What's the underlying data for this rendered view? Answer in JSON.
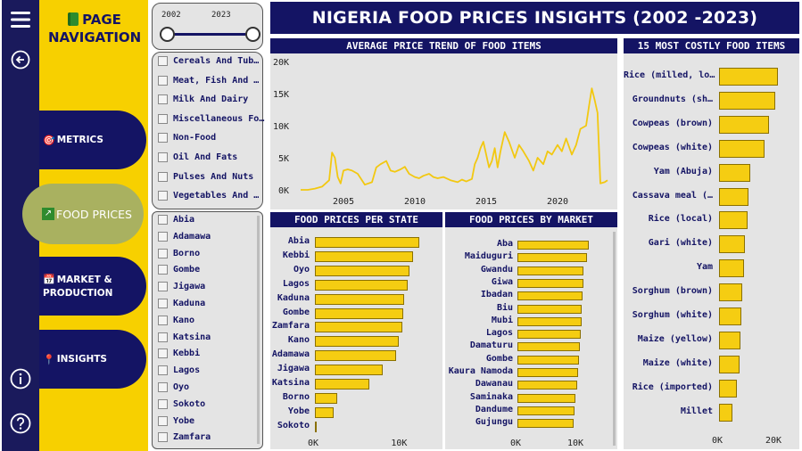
{
  "header": {
    "title": "NIGERIA FOOD PRICES INSIGHTS (2002 -2023)"
  },
  "nav": {
    "title_line1": "PAGE",
    "title_line2": "NAVIGATION",
    "items": [
      {
        "label": "METRICS",
        "icon": "target-icon",
        "active": false
      },
      {
        "label": "FOOD PRICES",
        "icon": "chart-up-icon",
        "active": true
      },
      {
        "label_line1": "MARKET &",
        "label_line2": "PRODUCTION",
        "icon": "calendar-icon",
        "active": false
      },
      {
        "label": "INSIGHTS",
        "icon": "pin-icon",
        "active": false
      }
    ],
    "rail_icons": [
      "menu-icon",
      "back-arrow-icon",
      "info-icon",
      "help-icon"
    ]
  },
  "year_slider": {
    "start": "2002",
    "end": "2023"
  },
  "category_filter": {
    "items": [
      "Cereals And Tub…",
      "Meat, Fish And …",
      "Milk And Dairy",
      "Miscellaneous Fo…",
      "Non-Food",
      "Oil And Fats",
      "Pulses And Nuts",
      "Vegetables And …"
    ]
  },
  "state_filter": {
    "items": [
      "Abia",
      "Adamawa",
      "Borno",
      "Gombe",
      "Jigawa",
      "Kaduna",
      "Kano",
      "Katsina",
      "Kebbi",
      "Lagos",
      "Oyo",
      "Sokoto",
      "Yobe",
      "Zamfara"
    ]
  },
  "colors": {
    "navy": "#141464",
    "yellow": "#f7d000",
    "bar": "#f5cd12",
    "line": "#f2c811",
    "panel": "#e4e4e4"
  },
  "chart_data": [
    {
      "type": "line",
      "title": "AVERAGE PRICE TREND OF FOOD ITEMS",
      "x_ticks": [
        2005,
        2010,
        2015,
        2020
      ],
      "y_ticks": [
        "0K",
        "5K",
        "10K",
        "15K",
        "20K"
      ],
      "ylim": [
        0,
        20000
      ],
      "xlim": [
        2002,
        2023.5
      ],
      "x": [
        2002,
        2002.5,
        2003,
        2003.5,
        2004,
        2004.2,
        2004.4,
        2004.6,
        2004.8,
        2005,
        2005.3,
        2005.6,
        2006,
        2006.5,
        2007,
        2007.3,
        2007.6,
        2008,
        2008.3,
        2008.6,
        2009,
        2009.3,
        2009.6,
        2010,
        2010.3,
        2010.6,
        2011,
        2011.3,
        2011.6,
        2012,
        2012.5,
        2013,
        2013.3,
        2013.6,
        2014,
        2014.2,
        2014.4,
        2014.6,
        2014.8,
        2015,
        2015.2,
        2015.4,
        2015.6,
        2015.8,
        2016,
        2016.3,
        2016.6,
        2017,
        2017.3,
        2017.6,
        2018,
        2018.3,
        2018.6,
        2019,
        2019.3,
        2019.6,
        2020,
        2020.3,
        2020.6,
        2021,
        2021.3,
        2021.6,
        2022,
        2022.2,
        2022.4,
        2022.6,
        2022.8,
        2023,
        2023.3,
        2023.5
      ],
      "values": [
        0,
        0,
        200,
        500,
        1500,
        5800,
        5000,
        2000,
        1000,
        3000,
        3200,
        3000,
        2500,
        800,
        1200,
        3500,
        4000,
        4500,
        3000,
        2800,
        3200,
        3600,
        2500,
        2000,
        1800,
        2200,
        2500,
        2000,
        1800,
        2000,
        1500,
        1200,
        1600,
        1300,
        1700,
        4000,
        5000,
        6500,
        7500,
        5500,
        3500,
        4500,
        6500,
        3500,
        6000,
        9000,
        7500,
        5000,
        7000,
        6000,
        4500,
        3000,
        5000,
        4000,
        6000,
        5500,
        7000,
        6000,
        8000,
        5500,
        7000,
        9500,
        10000,
        13000,
        15800,
        14000,
        12000,
        1000,
        1200,
        1500
      ]
    },
    {
      "type": "bar",
      "title": "15 MOST COSTLY FOOD ITEMS",
      "categories": [
        "Rice (milled, lo…",
        "Groundnuts (sh…",
        "Cowpeas (brown)",
        "Cowpeas (white)",
        "Yam (Abuja)",
        "Cassava meal (…",
        "Rice (local)",
        "Gari (white)",
        "Yam",
        "Sorghum (brown)",
        "Sorghum (white)",
        "Maize (yellow)",
        "Maize (white)",
        "Rice (imported)",
        "Millet"
      ],
      "values": [
        22000,
        21000,
        18500,
        17000,
        11500,
        11000,
        10800,
        9800,
        9200,
        8500,
        8300,
        8000,
        7800,
        6500,
        5000
      ],
      "x_ticks": [
        "0K",
        "20K"
      ],
      "xlim": [
        0,
        30000
      ]
    },
    {
      "type": "bar",
      "title": "FOOD PRICES PER STATE",
      "categories": [
        "Abia",
        "Kebbi",
        "Oyo",
        "Lagos",
        "Kaduna",
        "Gombe",
        "Zamfara",
        "Kano",
        "Adamawa",
        "Jigawa",
        "Katsina",
        "Borno",
        "Yobe",
        "Sokoto"
      ],
      "values": [
        12500,
        11800,
        11400,
        11100,
        10700,
        10600,
        10500,
        10100,
        9800,
        8100,
        6500,
        2700,
        2200,
        100
      ],
      "x_ticks": [
        "0K",
        "10K"
      ],
      "xlim": [
        0,
        15000
      ]
    },
    {
      "type": "bar",
      "title": "FOOD PRICES BY MARKET",
      "categories": [
        "Aba",
        "Maiduguri",
        "Gwandu",
        "Giwa",
        "Ibadan",
        "Biu",
        "Mubi",
        "Lagos",
        "Damaturu",
        "Gombe",
        "Kaura Namoda",
        "Dawanau",
        "Saminaka",
        "Dandume",
        "Gujungu"
      ],
      "values": [
        12500,
        12200,
        11600,
        11500,
        11400,
        11300,
        11200,
        11100,
        10900,
        10800,
        10600,
        10400,
        10200,
        10000,
        9800
      ],
      "x_ticks": [
        "0K",
        "10K"
      ],
      "xlim": [
        0,
        15000
      ]
    }
  ]
}
